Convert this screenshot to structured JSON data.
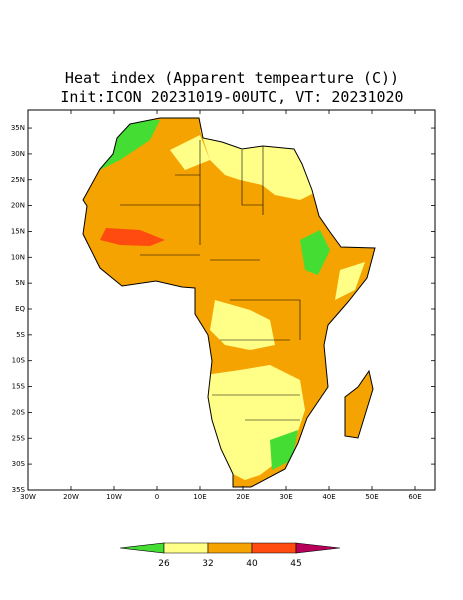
{
  "title": "Heat index (Apparent tempearture (C))",
  "subtitle": "Init:ICON 20231019-00UTC, VT: 20231020",
  "map": {
    "lat_ticks": [
      {
        "value": 35,
        "label": "35N"
      },
      {
        "value": 30,
        "label": "30N"
      },
      {
        "value": 25,
        "label": "25N"
      },
      {
        "value": 20,
        "label": "20N"
      },
      {
        "value": 15,
        "label": "15N"
      },
      {
        "value": 10,
        "label": "10N"
      },
      {
        "value": 5,
        "label": "5N"
      },
      {
        "value": 0,
        "label": "EQ"
      },
      {
        "value": -5,
        "label": "5S"
      },
      {
        "value": -10,
        "label": "10S"
      },
      {
        "value": -15,
        "label": "15S"
      },
      {
        "value": -20,
        "label": "20S"
      },
      {
        "value": -25,
        "label": "25S"
      },
      {
        "value": -30,
        "label": "30S"
      },
      {
        "value": -35,
        "label": "35S"
      }
    ],
    "lon_ticks": [
      {
        "value": -30,
        "label": "30W"
      },
      {
        "value": -20,
        "label": "20W"
      },
      {
        "value": -10,
        "label": "10W"
      },
      0,
      {
        "value": 10,
        "label": "10E"
      },
      {
        "value": 20,
        "label": "20E"
      },
      {
        "value": 30,
        "label": "30E"
      },
      {
        "value": 40,
        "label": "40E"
      },
      {
        "value": 50,
        "label": "50E"
      },
      {
        "value": 60,
        "label": "60E"
      }
    ]
  },
  "colorbar": {
    "levels": [
      26,
      32,
      40,
      45
    ],
    "colors": [
      "#44dd33",
      "#ffff88",
      "#f5a300",
      "#ff4a10",
      "#b8005a"
    ]
  }
}
